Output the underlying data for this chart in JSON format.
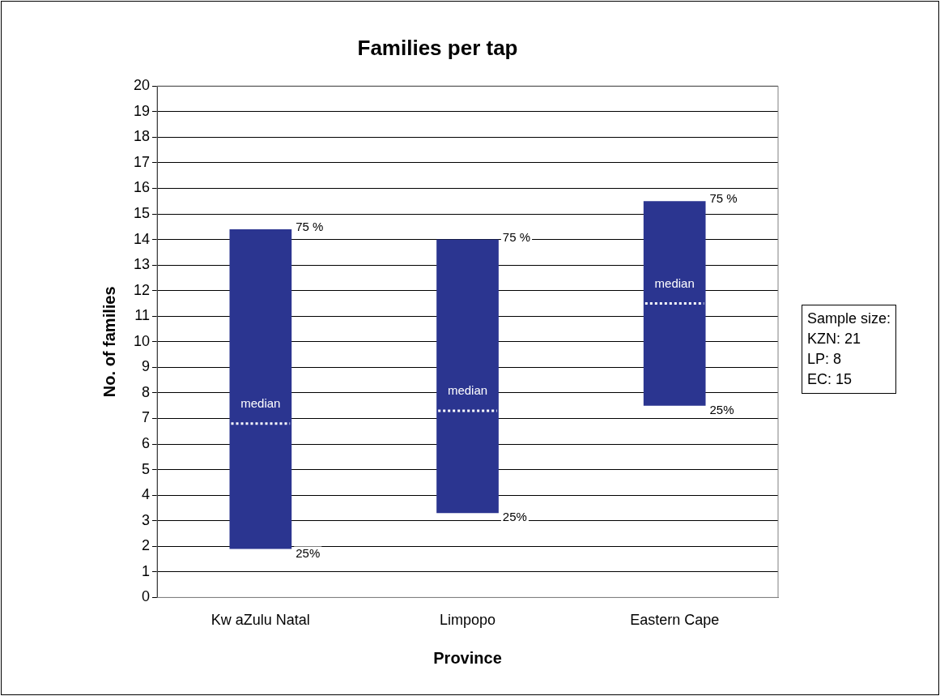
{
  "chart_data": {
    "type": "box",
    "title": "Families per tap",
    "xlabel": "Province",
    "ylabel": "No. of families",
    "categories": [
      "Kw aZulu Natal",
      "Limpopo",
      "Eastern Cape"
    ],
    "color": "#2b3590",
    "boxes": [
      {
        "low": 1.9,
        "q1": 1.9,
        "median": 6.8,
        "q3": 14.4,
        "high": 14.4
      },
      {
        "low": 3.3,
        "q1": 3.3,
        "median": 7.3,
        "q3": 14.0,
        "high": 14.0
      },
      {
        "low": 7.5,
        "q1": 7.5,
        "median": 11.5,
        "q3": 15.5,
        "high": 15.5
      }
    ],
    "ylim": [
      0,
      20
    ],
    "yticks": [
      0,
      1,
      2,
      3,
      4,
      5,
      6,
      7,
      8,
      9,
      10,
      11,
      12,
      13,
      14,
      15,
      16,
      17,
      18,
      19,
      20
    ],
    "grid": "y",
    "legend": false,
    "annotations": [
      {
        "text": "75 %",
        "x": "Kw aZulu Natal",
        "y": 14.4
      },
      {
        "text": "25%",
        "x": "Kw aZulu Natal",
        "y": 1.9
      },
      {
        "text": "median",
        "x": "Kw aZulu Natal",
        "y": 6.8
      },
      {
        "text": "75 %",
        "x": "Limpopo",
        "y": 14.0
      },
      {
        "text": "25%",
        "x": "Limpopo",
        "y": 3.3
      },
      {
        "text": "median",
        "x": "Limpopo",
        "y": 7.3
      },
      {
        "text": "75 %",
        "x": "Eastern Cape",
        "y": 15.5
      },
      {
        "text": "25%",
        "x": "Eastern Cape",
        "y": 7.5
      },
      {
        "text": "median",
        "x": "Eastern Cape",
        "y": 11.5
      },
      "Sample size:",
      "KZN: 21",
      "LP: 8",
      "EC: 15"
    ]
  }
}
